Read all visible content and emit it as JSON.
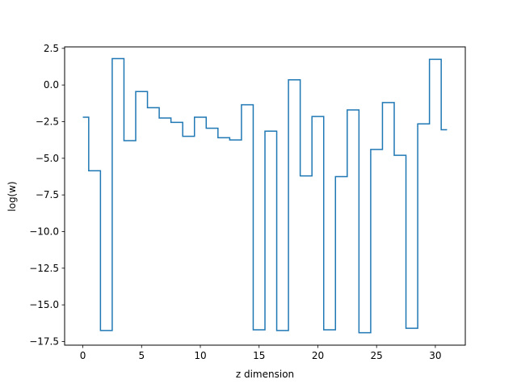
{
  "chart_data": {
    "type": "line",
    "drawstyle": "steps-mid",
    "title": "",
    "xlabel": "z dimension",
    "ylabel": "log(w)",
    "xlim": [
      -1.55,
      32.55
    ],
    "ylim": [
      -17.75,
      2.6
    ],
    "xticks": [
      0,
      5,
      10,
      15,
      20,
      25,
      30
    ],
    "yticks": [
      2.5,
      0.0,
      -2.5,
      -5.0,
      -7.5,
      -10.0,
      -12.5,
      -15.0,
      -17.5
    ],
    "ytick_labels": [
      "2.5",
      "0.0",
      "−2.5",
      "−5.0",
      "−7.5",
      "−10.0",
      "−12.5",
      "−15.0",
      "−17.5"
    ],
    "grid": false,
    "line_color": "#1f77b4",
    "series": [
      {
        "x": [
          0,
          1,
          2,
          3,
          4,
          5,
          6,
          7,
          8,
          9,
          10,
          11,
          12,
          13,
          14,
          15,
          16,
          17,
          18,
          19,
          20,
          21,
          22,
          23,
          24,
          25,
          26,
          27,
          28,
          29,
          30,
          31
        ],
        "values": [
          -2.2,
          -5.85,
          -16.75,
          1.8,
          -3.8,
          -0.45,
          -1.55,
          -2.25,
          -2.55,
          -3.5,
          -2.2,
          -2.95,
          -3.6,
          -3.75,
          -1.35,
          -16.7,
          -3.15,
          -16.75,
          0.35,
          -6.2,
          -2.15,
          -16.7,
          -6.25,
          -1.7,
          -16.9,
          -4.4,
          -1.2,
          -4.8,
          -16.6,
          -2.65,
          1.75,
          -3.05
        ]
      }
    ]
  }
}
